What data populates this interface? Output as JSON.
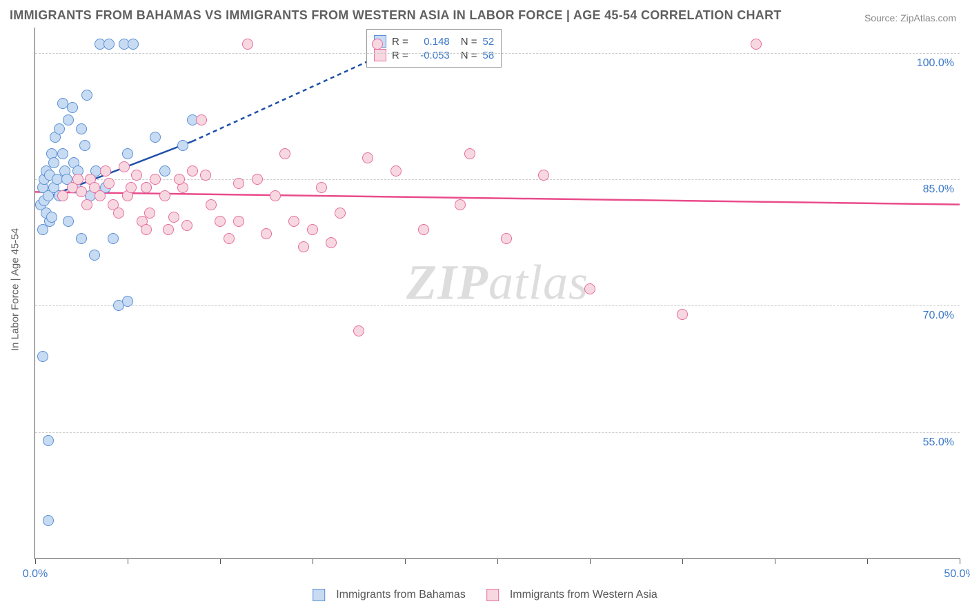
{
  "title": "IMMIGRANTS FROM BAHAMAS VS IMMIGRANTS FROM WESTERN ASIA IN LABOR FORCE | AGE 45-54 CORRELATION CHART",
  "source_label": "Source: ZipAtlas.com",
  "ylabel": "In Labor Force | Age 45-54",
  "watermark": "ZIPatlas",
  "watermark_bold": "ZIP",
  "watermark_rest": "atlas",
  "chart": {
    "type": "scatter",
    "background_color": "#ffffff",
    "grid_color": "#cccccc",
    "axis_color": "#555555",
    "x_min": 0.0,
    "x_max": 50.0,
    "y_min": 40.0,
    "y_max": 103.0,
    "ytick_values": [
      55.0,
      70.0,
      85.0,
      100.0
    ],
    "ytick_labels": [
      "55.0%",
      "70.0%",
      "85.0%",
      "100.0%"
    ],
    "xtick_values": [
      0.0,
      5.0,
      10.0,
      15.0,
      20.0,
      25.0,
      30.0,
      35.0,
      40.0,
      45.0,
      50.0
    ],
    "xtick_labels_shown": {
      "0.0": "0.0%",
      "50.0": "50.0%"
    },
    "marker_radius": 8,
    "marker_border_width": 1.5,
    "series": [
      {
        "name": "Immigrants from Bahamas",
        "fill": "#c7dbf2",
        "stroke": "#5a8fd6",
        "r_value": "0.148",
        "n_value": "52",
        "regression": {
          "solid": {
            "x1": 0.2,
            "y1": 82.5,
            "x2": 8.5,
            "y2": 89.5
          },
          "dashed": {
            "x1": 8.5,
            "y1": 89.5,
            "x2": 20.0,
            "y2": 101.0
          },
          "color": "#1f4fa8",
          "width": 2.5
        },
        "points": [
          {
            "x": 0.3,
            "y": 82
          },
          {
            "x": 0.4,
            "y": 84
          },
          {
            "x": 0.5,
            "y": 85
          },
          {
            "x": 0.5,
            "y": 82.5
          },
          {
            "x": 0.6,
            "y": 86
          },
          {
            "x": 0.7,
            "y": 83
          },
          {
            "x": 0.8,
            "y": 85.5
          },
          {
            "x": 0.8,
            "y": 80
          },
          {
            "x": 0.9,
            "y": 88
          },
          {
            "x": 1.0,
            "y": 84
          },
          {
            "x": 1.0,
            "y": 87
          },
          {
            "x": 1.1,
            "y": 90
          },
          {
            "x": 1.2,
            "y": 85
          },
          {
            "x": 1.3,
            "y": 91
          },
          {
            "x": 1.3,
            "y": 83
          },
          {
            "x": 1.5,
            "y": 88
          },
          {
            "x": 1.5,
            "y": 94
          },
          {
            "x": 1.6,
            "y": 86
          },
          {
            "x": 1.7,
            "y": 85
          },
          {
            "x": 1.8,
            "y": 92
          },
          {
            "x": 1.8,
            "y": 80
          },
          {
            "x": 2.0,
            "y": 93.5
          },
          {
            "x": 2.1,
            "y": 87
          },
          {
            "x": 2.2,
            "y": 84
          },
          {
            "x": 2.3,
            "y": 86
          },
          {
            "x": 2.5,
            "y": 91
          },
          {
            "x": 2.5,
            "y": 78
          },
          {
            "x": 2.7,
            "y": 89
          },
          {
            "x": 2.8,
            "y": 95
          },
          {
            "x": 3.0,
            "y": 83
          },
          {
            "x": 3.2,
            "y": 76
          },
          {
            "x": 3.3,
            "y": 86
          },
          {
            "x": 3.5,
            "y": 101
          },
          {
            "x": 3.8,
            "y": 84
          },
          {
            "x": 4.0,
            "y": 101
          },
          {
            "x": 4.2,
            "y": 78
          },
          {
            "x": 4.5,
            "y": 70
          },
          {
            "x": 4.8,
            "y": 101
          },
          {
            "x": 5.0,
            "y": 88
          },
          {
            "x": 5.0,
            "y": 70.5
          },
          {
            "x": 5.3,
            "y": 101
          },
          {
            "x": 6.0,
            "y": 84
          },
          {
            "x": 6.5,
            "y": 90
          },
          {
            "x": 7.0,
            "y": 86
          },
          {
            "x": 8.0,
            "y": 89
          },
          {
            "x": 8.5,
            "y": 92
          },
          {
            "x": 0.4,
            "y": 64
          },
          {
            "x": 0.7,
            "y": 54
          },
          {
            "x": 0.7,
            "y": 44.5
          },
          {
            "x": 0.4,
            "y": 79
          },
          {
            "x": 0.6,
            "y": 81
          },
          {
            "x": 0.9,
            "y": 80.5
          }
        ]
      },
      {
        "name": "Immigrants from Western Asia",
        "fill": "#f8d8e0",
        "stroke": "#e56da0",
        "r_value": "-0.053",
        "n_value": "58",
        "regression": {
          "solid": {
            "x1": 0.0,
            "y1": 83.5,
            "x2": 50.0,
            "y2": 82.0
          },
          "color": "#e94b8a",
          "width": 2.5
        },
        "points": [
          {
            "x": 1.5,
            "y": 83
          },
          {
            "x": 2.0,
            "y": 84
          },
          {
            "x": 2.3,
            "y": 85
          },
          {
            "x": 2.5,
            "y": 83.5
          },
          {
            "x": 2.8,
            "y": 82
          },
          {
            "x": 3.0,
            "y": 85
          },
          {
            "x": 3.2,
            "y": 84
          },
          {
            "x": 3.5,
            "y": 83
          },
          {
            "x": 3.8,
            "y": 86
          },
          {
            "x": 4.0,
            "y": 84.5
          },
          {
            "x": 4.2,
            "y": 82
          },
          {
            "x": 4.5,
            "y": 81
          },
          {
            "x": 4.8,
            "y": 86.5
          },
          {
            "x": 5.0,
            "y": 83
          },
          {
            "x": 5.2,
            "y": 84
          },
          {
            "x": 5.5,
            "y": 85.5
          },
          {
            "x": 5.8,
            "y": 80
          },
          {
            "x": 6.0,
            "y": 84
          },
          {
            "x": 6.2,
            "y": 81
          },
          {
            "x": 6.5,
            "y": 85
          },
          {
            "x": 7.0,
            "y": 83
          },
          {
            "x": 7.2,
            "y": 79
          },
          {
            "x": 7.5,
            "y": 80.5
          },
          {
            "x": 8.0,
            "y": 84
          },
          {
            "x": 8.2,
            "y": 79.5
          },
          {
            "x": 8.5,
            "y": 86
          },
          {
            "x": 9.0,
            "y": 92
          },
          {
            "x": 9.5,
            "y": 82
          },
          {
            "x": 10.0,
            "y": 80
          },
          {
            "x": 10.5,
            "y": 78
          },
          {
            "x": 11.0,
            "y": 84.5
          },
          {
            "x": 11.0,
            "y": 80
          },
          {
            "x": 11.5,
            "y": 101
          },
          {
            "x": 12.0,
            "y": 85
          },
          {
            "x": 12.5,
            "y": 78.5
          },
          {
            "x": 13.0,
            "y": 83
          },
          {
            "x": 13.5,
            "y": 88
          },
          {
            "x": 14.0,
            "y": 80
          },
          {
            "x": 14.5,
            "y": 77
          },
          {
            "x": 15.0,
            "y": 79
          },
          {
            "x": 15.5,
            "y": 84
          },
          {
            "x": 16.0,
            "y": 77.5
          },
          {
            "x": 16.5,
            "y": 81
          },
          {
            "x": 17.5,
            "y": 67
          },
          {
            "x": 18.0,
            "y": 87.5
          },
          {
            "x": 18.5,
            "y": 101
          },
          {
            "x": 19.5,
            "y": 86
          },
          {
            "x": 21.0,
            "y": 79
          },
          {
            "x": 23.0,
            "y": 82
          },
          {
            "x": 23.5,
            "y": 88
          },
          {
            "x": 25.5,
            "y": 78
          },
          {
            "x": 27.5,
            "y": 85.5
          },
          {
            "x": 30.0,
            "y": 72
          },
          {
            "x": 35.0,
            "y": 69
          },
          {
            "x": 39.0,
            "y": 101
          },
          {
            "x": 6.0,
            "y": 79
          },
          {
            "x": 7.8,
            "y": 85
          },
          {
            "x": 9.2,
            "y": 85.5
          }
        ]
      }
    ]
  },
  "bottom_legend": [
    {
      "label": "Immigrants from Bahamas",
      "fill": "#c7dbf2",
      "stroke": "#5a8fd6"
    },
    {
      "label": "Immigrants from Western Asia",
      "fill": "#f8d8e0",
      "stroke": "#e56da0"
    }
  ],
  "stats_legend": {
    "r_label": "R =",
    "n_label": "N ="
  }
}
